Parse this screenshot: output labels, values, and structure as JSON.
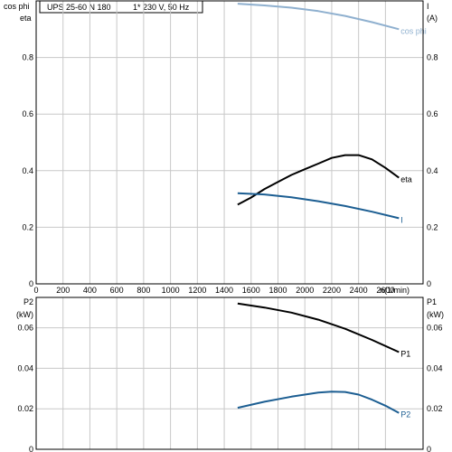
{
  "header": {
    "model": "UPS 25-60 N 180",
    "supply": "1* 230 V, 50 Hz"
  },
  "colors": {
    "black": "#000000",
    "blue": "#1c5e92",
    "lightblue": "#8fb0cf",
    "grid": "#c8c8c8"
  },
  "chart_data": [
    {
      "type": "line",
      "id": "top",
      "left_axis_label": [
        "cos phi",
        "eta"
      ],
      "right_axis_label": [
        "I",
        "(A)"
      ],
      "xlabel": "n(1/min)",
      "xlim": [
        0,
        2880
      ],
      "ylim": [
        0,
        1.0
      ],
      "x_ticks": [
        0,
        200,
        400,
        600,
        800,
        1000,
        1200,
        1400,
        1600,
        1800,
        2000,
        2200,
        2400,
        2600
      ],
      "x_tick_labels": [
        "0",
        "200",
        "400",
        "600",
        "800",
        "1000",
        "1200",
        "1400",
        "1600",
        "1800",
        "2000",
        "2200",
        "2400",
        "2600"
      ],
      "y_ticks": [
        0,
        0.2,
        0.4,
        0.6,
        0.8
      ],
      "y_tick_labels": [
        "0",
        "0.2",
        "0.4",
        "0.6",
        "0.8"
      ],
      "y_right_ticks": [
        0,
        0.2,
        0.4,
        0.6,
        0.8
      ],
      "y_right_tick_labels": [
        "0",
        "0.2",
        "0.4",
        "0.6",
        "0.8"
      ],
      "grid": true,
      "series": [
        {
          "name": "cos phi",
          "color": "#8fb0cf",
          "x": [
            1500,
            1700,
            1900,
            2100,
            2300,
            2500,
            2700
          ],
          "y": [
            0.99,
            0.984,
            0.976,
            0.964,
            0.947,
            0.925,
            0.9
          ]
        },
        {
          "name": "eta",
          "color": "#000000",
          "x": [
            1500,
            1600,
            1700,
            1800,
            1900,
            2000,
            2100,
            2200,
            2300,
            2400,
            2500,
            2600,
            2700
          ],
          "y": [
            0.28,
            0.305,
            0.335,
            0.36,
            0.385,
            0.405,
            0.425,
            0.445,
            0.455,
            0.455,
            0.44,
            0.41,
            0.375
          ]
        },
        {
          "name": "I",
          "color": "#1c5e92",
          "x": [
            1500,
            1700,
            1900,
            2100,
            2300,
            2500,
            2700
          ],
          "y": [
            0.32,
            0.316,
            0.306,
            0.292,
            0.275,
            0.255,
            0.232
          ]
        }
      ]
    },
    {
      "type": "line",
      "id": "bottom",
      "left_axis_label": [
        "P2",
        "(kW)"
      ],
      "right_axis_label": [
        "P1",
        "(kW)"
      ],
      "xlim": [
        0,
        2880
      ],
      "ylim": [
        0,
        0.075
      ],
      "y_ticks": [
        0,
        0.02,
        0.04,
        0.06
      ],
      "y_tick_labels": [
        "0",
        "0.02",
        "0.04",
        "0.06"
      ],
      "y_right_ticks": [
        0,
        0.02,
        0.04,
        0.06
      ],
      "y_right_tick_labels": [
        "0",
        "0.02",
        "0.04",
        "0.06"
      ],
      "grid": true,
      "series": [
        {
          "name": "P1",
          "color": "#000000",
          "x": [
            1500,
            1700,
            1900,
            2100,
            2300,
            2500,
            2700
          ],
          "y": [
            0.072,
            0.07,
            0.0675,
            0.064,
            0.0595,
            0.054,
            0.048
          ]
        },
        {
          "name": "P2",
          "color": "#1c5e92",
          "x": [
            1500,
            1700,
            1900,
            2100,
            2200,
            2300,
            2400,
            2500,
            2600,
            2700
          ],
          "y": [
            0.0205,
            0.0235,
            0.026,
            0.028,
            0.0285,
            0.0283,
            0.027,
            0.0245,
            0.0215,
            0.018
          ]
        }
      ]
    }
  ]
}
